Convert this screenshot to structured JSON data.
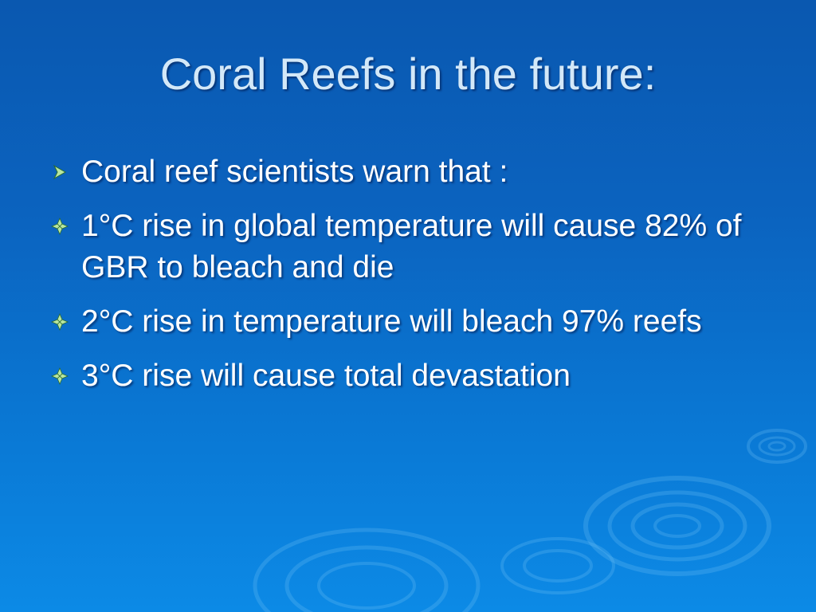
{
  "slide": {
    "title": "Coral Reefs in the future:",
    "bullets": [
      {
        "marker": "arrow-bullet-icon",
        "text": "Coral reef scientists warn that :"
      },
      {
        "marker": "diamond-bullet-icon",
        "text": " 1°C rise in global temperature will cause 82% of GBR to bleach and die"
      },
      {
        "marker": "diamond-bullet-icon",
        "text": "2°C rise in temperature will bleach 97% reefs"
      },
      {
        "marker": "diamond-bullet-icon",
        "text": "3°C rise will cause total devastation"
      }
    ]
  },
  "colors": {
    "background_top": "#0a58b0",
    "background_bottom": "#0c8ae6",
    "title": "#d3e8f8",
    "body_text": "#ffffff",
    "bullet_marker": "#b8e6a0"
  }
}
